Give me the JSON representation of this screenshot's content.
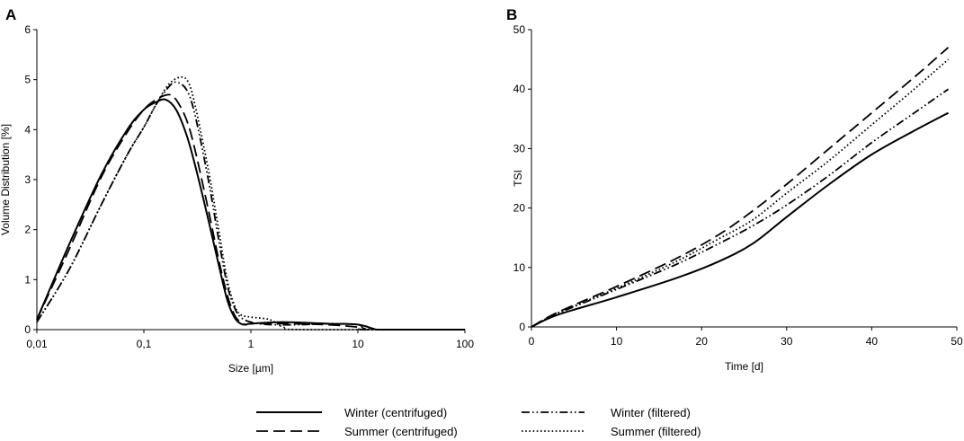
{
  "chart_data": [
    {
      "panel": "A",
      "type": "line",
      "xscale": "log",
      "xlabel": "Size [µm]",
      "ylabel": "Volume Distribution [%]",
      "xlim": [
        0.01,
        100
      ],
      "ylim": [
        0,
        6
      ],
      "xticks": [
        0.01,
        0.1,
        1,
        10,
        100
      ],
      "xtick_labels": [
        "0,01",
        "0,1",
        "1",
        "10",
        "100"
      ],
      "yticks": [
        0,
        1,
        2,
        3,
        4,
        5,
        6
      ],
      "ytick_labels": [
        "0",
        "1",
        "2",
        "3",
        "4",
        "5",
        "6"
      ],
      "series": [
        {
          "name": "Winter (centrifuged)",
          "style": "solid",
          "x": [
            0.01,
            0.02,
            0.04,
            0.07,
            0.1,
            0.13,
            0.16,
            0.2,
            0.25,
            0.3,
            0.4,
            0.5,
            0.6,
            0.7,
            0.8,
            0.9,
            1.0,
            2,
            5,
            10,
            15,
            20,
            100
          ],
          "y": [
            0.2,
            1.7,
            3.1,
            4.0,
            4.4,
            4.55,
            4.6,
            4.4,
            3.9,
            3.3,
            2.2,
            1.3,
            0.6,
            0.25,
            0.12,
            0.1,
            0.12,
            0.15,
            0.12,
            0.1,
            0.0,
            0.0,
            0.0
          ]
        },
        {
          "name": "Summer (centrifuged)",
          "style": "dashed",
          "x": [
            0.01,
            0.02,
            0.04,
            0.07,
            0.1,
            0.13,
            0.17,
            0.2,
            0.25,
            0.3,
            0.4,
            0.5,
            0.6,
            0.7,
            0.8,
            0.9,
            1.0,
            2,
            5,
            10,
            12,
            100
          ],
          "y": [
            0.2,
            1.6,
            3.05,
            3.95,
            4.4,
            4.6,
            4.7,
            4.6,
            4.2,
            3.6,
            2.4,
            1.4,
            0.7,
            0.3,
            0.15,
            0.1,
            0.12,
            0.12,
            0.1,
            0.05,
            0.0,
            0.0
          ]
        },
        {
          "name": "Winter (filtered)",
          "style": "dashdotdot",
          "x": [
            0.01,
            0.02,
            0.04,
            0.07,
            0.1,
            0.13,
            0.17,
            0.2,
            0.25,
            0.3,
            0.4,
            0.5,
            0.6,
            0.7,
            0.8,
            1.0,
            1.5,
            3,
            5,
            10,
            14,
            100
          ],
          "y": [
            0.15,
            1.2,
            2.5,
            3.5,
            4.05,
            4.5,
            4.85,
            4.95,
            4.8,
            4.3,
            3.0,
            1.8,
            0.9,
            0.45,
            0.25,
            0.15,
            0.1,
            0.1,
            0.12,
            0.1,
            0.0,
            0.0
          ]
        },
        {
          "name": "Summer (filtered)",
          "style": "dotted",
          "x": [
            0.01,
            0.02,
            0.04,
            0.07,
            0.1,
            0.13,
            0.17,
            0.22,
            0.26,
            0.3,
            0.4,
            0.5,
            0.6,
            0.7,
            0.8,
            1.0,
            1.5,
            2,
            3,
            100
          ],
          "y": [
            0.15,
            1.2,
            2.5,
            3.5,
            4.05,
            4.5,
            4.9,
            5.05,
            4.95,
            4.5,
            3.2,
            2.0,
            1.0,
            0.5,
            0.3,
            0.25,
            0.2,
            0.05,
            0.0,
            0.0
          ]
        }
      ]
    },
    {
      "panel": "B",
      "type": "line",
      "xlabel": "Time [d]",
      "ylabel": "TSI",
      "xlim": [
        0,
        50
      ],
      "ylim": [
        0,
        50
      ],
      "xticks": [
        0,
        10,
        20,
        30,
        40,
        50
      ],
      "xtick_labels": [
        "0",
        "10",
        "20",
        "30",
        "40",
        "50"
      ],
      "yticks": [
        0,
        10,
        20,
        30,
        40,
        50
      ],
      "ytick_labels": [
        "0",
        "10",
        "20",
        "30",
        "40",
        "50"
      ],
      "series": [
        {
          "name": "Winter (centrifuged)",
          "style": "solid",
          "x": [
            0,
            3,
            10,
            17,
            22,
            26,
            30,
            35,
            40,
            45,
            49
          ],
          "y": [
            0,
            2,
            5,
            8.2,
            11,
            14,
            18.5,
            24,
            29,
            33,
            36
          ]
        },
        {
          "name": "Summer (centrifuged)",
          "style": "dashed",
          "x": [
            0,
            3,
            10,
            17,
            22,
            26,
            30,
            35,
            40,
            45,
            49
          ],
          "y": [
            0,
            2.4,
            6.8,
            11.5,
            15.5,
            19.5,
            24,
            30,
            36,
            42,
            47
          ]
        },
        {
          "name": "Winter (filtered)",
          "style": "dashdotdot",
          "x": [
            0,
            3,
            10,
            17,
            22,
            26,
            30,
            35,
            40,
            45,
            49
          ],
          "y": [
            0,
            2.2,
            6.3,
            10.5,
            14,
            17,
            20.5,
            25.5,
            31,
            36,
            40
          ]
        },
        {
          "name": "Summer (filtered)",
          "style": "dotted",
          "x": [
            0,
            3,
            10,
            17,
            22,
            26,
            30,
            35,
            40,
            45,
            49
          ],
          "y": [
            0,
            2.3,
            6.5,
            11,
            14.8,
            18,
            22.5,
            28,
            34,
            40,
            45
          ]
        }
      ]
    }
  ],
  "legend": {
    "placement": "bottom",
    "items": [
      {
        "label": "Winter (centrifuged)",
        "style": "solid"
      },
      {
        "label": "Winter (filtered)",
        "style": "dashdotdot"
      },
      {
        "label": "Summer (centrifuged)",
        "style": "dashed"
      },
      {
        "label": "Summer (filtered)",
        "style": "dotted"
      }
    ]
  },
  "colors": {
    "line": "#000000",
    "background": "#ffffff"
  }
}
